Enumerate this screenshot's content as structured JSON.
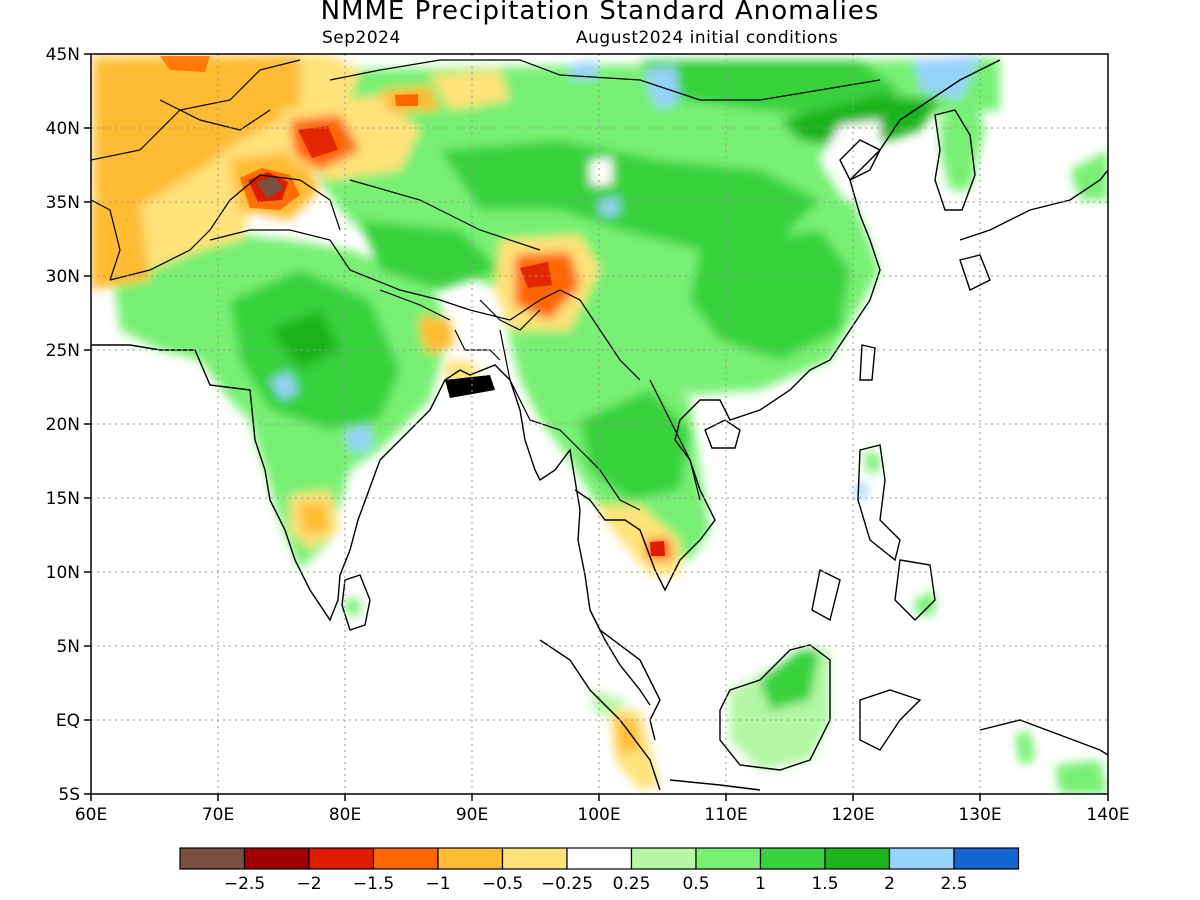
{
  "title": "NMME Precipitation Standard Anomalies",
  "subtitle_left": "Sep2024",
  "subtitle_right": "August2024 initial conditions",
  "lat_labels": [
    "45N",
    "40N",
    "35N",
    "30N",
    "25N",
    "20N",
    "15N",
    "10N",
    "5N",
    "EQ",
    "5S"
  ],
  "lon_labels": [
    "60E",
    "70E",
    "80E",
    "90E",
    "100E",
    "110E",
    "120E",
    "130E",
    "140E"
  ],
  "colorbar": {
    "colors": [
      "#7a5040",
      "#a00000",
      "#dd1c00",
      "#ff6600",
      "#ffbb33",
      "#ffe27a",
      "#ffffff",
      "#b4f7a4",
      "#78f073",
      "#37d23c",
      "#1eb41e",
      "#96d2fa",
      "#1464d2"
    ],
    "labels": [
      "-2.5",
      "-2",
      "-1.5",
      "-1",
      "-0.5",
      "-0.25",
      "0.25",
      "0.5",
      "1",
      "1.5",
      "2",
      "2.5"
    ]
  }
}
